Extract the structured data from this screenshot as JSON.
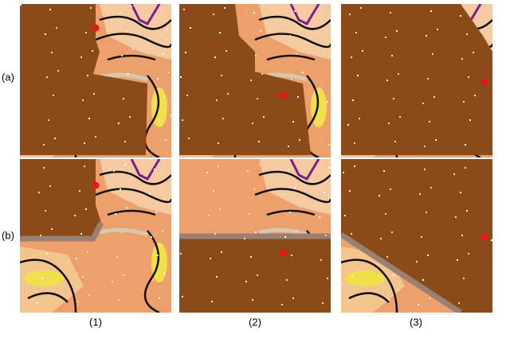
{
  "row_labels": [
    "(a)",
    "(b)"
  ],
  "column_labels": [
    "(1)",
    "(2)",
    "(3)"
  ]
}
